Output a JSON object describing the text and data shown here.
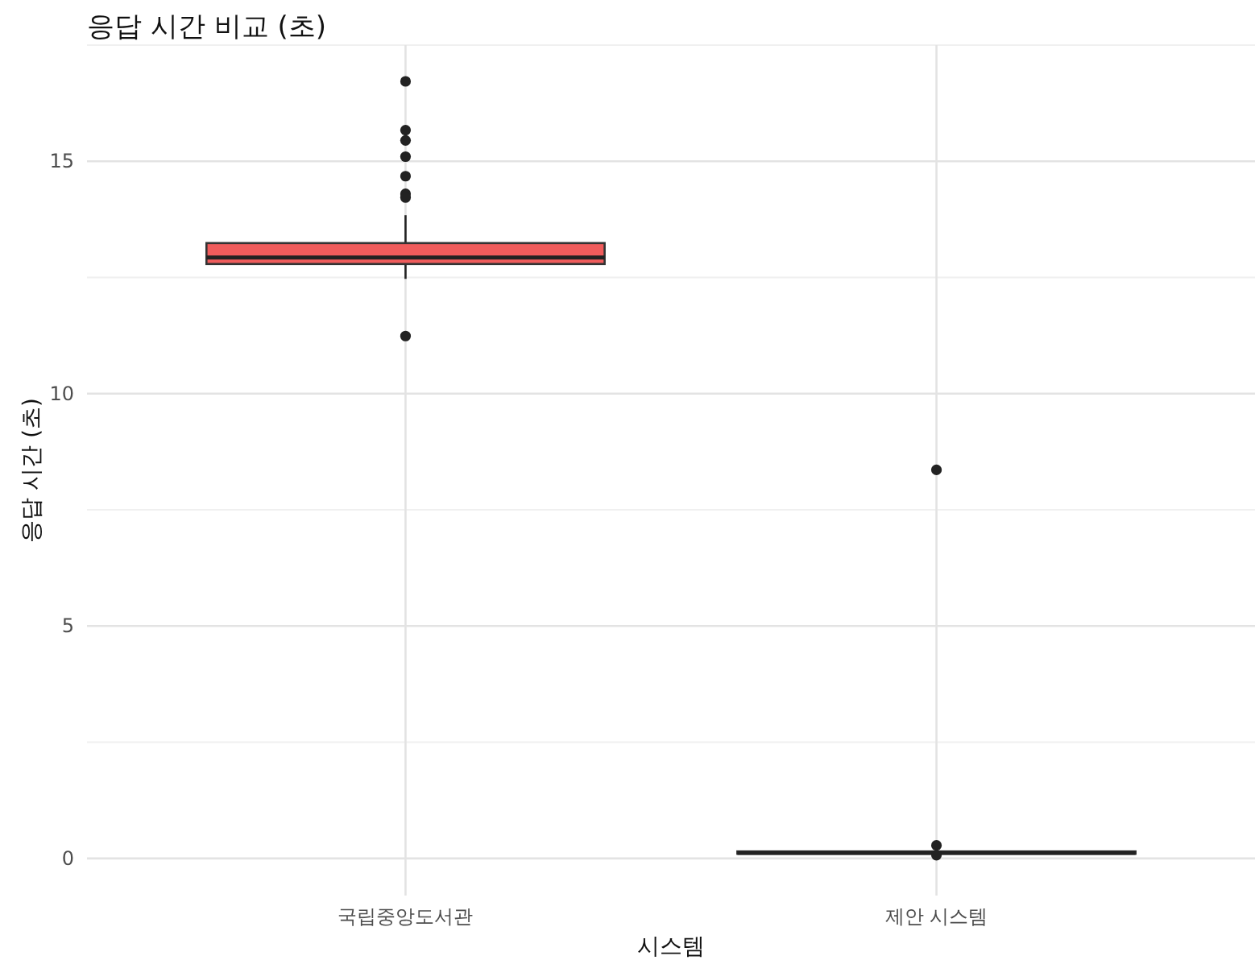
{
  "chart_data": {
    "type": "box",
    "title": "응답 시간 비교 (초)",
    "xlabel": "시스템",
    "ylabel": "응답 시간 (초)",
    "categories": [
      "국립중앙도서관",
      "제안 시스템"
    ],
    "colors": [
      "#f05c5c",
      "#00bfc4"
    ],
    "boxes": [
      {
        "low": 12.47,
        "q1": 12.79,
        "median": 12.93,
        "q3": 13.24,
        "high": 13.84,
        "outliers": [
          16.72,
          15.67,
          15.45,
          15.1,
          14.68,
          14.3,
          14.22,
          11.24
        ]
      },
      {
        "low": 0.08,
        "q1": 0.1,
        "median": 0.12,
        "q3": 0.15,
        "high": 0.18,
        "outliers": [
          8.36,
          0.28,
          0.07
        ]
      }
    ],
    "ylim": [
      -0.8,
      17.5
    ],
    "yticks": [
      0,
      {
        "value": 2.5,
        "label": null
      },
      5,
      {
        "value": 7.5,
        "label": null
      },
      10,
      {
        "value": 12.5,
        "label": null
      },
      15,
      {
        "value": 17.5,
        "label": null
      }
    ],
    "grid": true
  }
}
